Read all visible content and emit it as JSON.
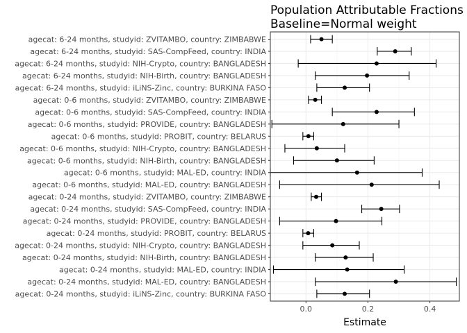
{
  "chart_data": {
    "type": "forest",
    "title": "Population Attributable Fractions",
    "subtitle": "Baseline=Normal weight",
    "xlabel": "Estimate",
    "ylabel": "",
    "xlim": [
      -0.115,
      0.495
    ],
    "xticks": [
      0.0,
      0.2,
      0.4
    ],
    "xtick_labels": [
      "0.0",
      "0.2",
      "0.4"
    ],
    "grid": true,
    "theme": "bw",
    "rows": [
      {
        "label": "agecat: 6-24 months, studyid: ZVITAMBO, country: ZIMBABWE",
        "estimate": 0.05,
        "lower": 0.015,
        "upper": 0.085
      },
      {
        "label": "agecat: 6-24 months, studyid: SAS-CompFeed, country: INDIA",
        "estimate": 0.288,
        "lower": 0.23,
        "upper": 0.34
      },
      {
        "label": "agecat: 6-24 months, studyid: NIH-Crypto, country: BANGLADESH",
        "estimate": 0.228,
        "lower": -0.025,
        "upper": 0.42
      },
      {
        "label": "agecat: 6-24 months, studyid: NIH-Birth, country: BANGLADESH",
        "estimate": 0.197,
        "lower": 0.03,
        "upper": 0.333
      },
      {
        "label": "agecat: 6-24 months, studyid: iLiNS-Zinc, country: BURKINA FASO",
        "estimate": 0.125,
        "lower": 0.035,
        "upper": 0.205
      },
      {
        "label": "agecat: 0-6 months, studyid: ZVITAMBO, country: ZIMBABWE",
        "estimate": 0.03,
        "lower": 0.008,
        "upper": 0.05
      },
      {
        "label": "agecat: 0-6 months, studyid: SAS-CompFeed, country: INDIA",
        "estimate": 0.228,
        "lower": 0.085,
        "upper": 0.35
      },
      {
        "label": "agecat: 0-6 months, studyid: PROVIDE, country: BANGLADESH",
        "estimate": 0.12,
        "lower": -0.11,
        "upper": 0.3
      },
      {
        "label": "agecat: 0-6 months, studyid: PROBIT, country: BELARUS",
        "estimate": 0.008,
        "lower": -0.01,
        "upper": 0.025
      },
      {
        "label": "agecat: 0-6 months, studyid: NIH-Crypto, country: BANGLADESH",
        "estimate": 0.035,
        "lower": -0.068,
        "upper": 0.125
      },
      {
        "label": "agecat: 0-6 months, studyid: NIH-Birth, country: BANGLADESH",
        "estimate": 0.1,
        "lower": -0.04,
        "upper": 0.22
      },
      {
        "label": "agecat: 0-6 months, studyid: MAL-ED, country: INDIA",
        "estimate": 0.165,
        "lower": -0.115,
        "upper": 0.375
      },
      {
        "label": "agecat: 0-6 months, studyid: MAL-ED, country: BANGLADESH",
        "estimate": 0.212,
        "lower": -0.085,
        "upper": 0.43
      },
      {
        "label": "agecat: 0-24 months, studyid: ZVITAMBO, country: ZIMBABWE",
        "estimate": 0.033,
        "lower": 0.017,
        "upper": 0.05
      },
      {
        "label": "agecat: 0-24 months, studyid: SAS-CompFeed, country: INDIA",
        "estimate": 0.243,
        "lower": 0.18,
        "upper": 0.302
      },
      {
        "label": "agecat: 0-24 months, studyid: PROVIDE, country: BANGLADESH",
        "estimate": 0.097,
        "lower": -0.085,
        "upper": 0.245
      },
      {
        "label": "agecat: 0-24 months, studyid: PROBIT, country: BELARUS",
        "estimate": 0.007,
        "lower": -0.01,
        "upper": 0.025
      },
      {
        "label": "agecat: 0-24 months, studyid: NIH-Crypto, country: BANGLADESH",
        "estimate": 0.085,
        "lower": -0.01,
        "upper": 0.172
      },
      {
        "label": "agecat: 0-24 months, studyid: NIH-Birth, country: BANGLADESH",
        "estimate": 0.128,
        "lower": 0.03,
        "upper": 0.217
      },
      {
        "label": "agecat: 0-24 months, studyid: MAL-ED, country: INDIA",
        "estimate": 0.133,
        "lower": -0.105,
        "upper": 0.317
      },
      {
        "label": "agecat: 0-24 months, studyid: MAL-ED, country: BANGLADESH",
        "estimate": 0.29,
        "lower": 0.03,
        "upper": 0.485
      },
      {
        "label": "agecat: 0-24 months, studyid: iLiNS-Zinc, country: BURKINA FASO",
        "estimate": 0.125,
        "lower": 0.035,
        "upper": 0.205
      }
    ]
  }
}
